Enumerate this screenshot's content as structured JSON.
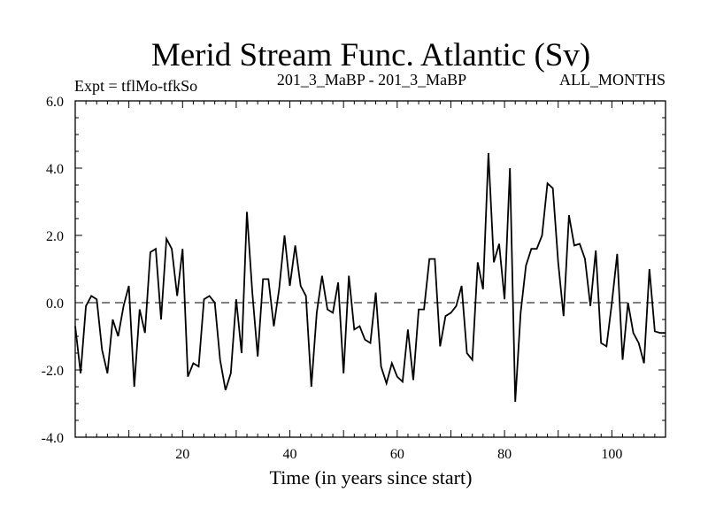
{
  "chart_data": {
    "type": "line",
    "title": "Merid Stream Func. Atlantic (Sv)",
    "subtitle_left": "Expt = tflMo-tfkSo",
    "subtitle_center": "201_3_MaBP - 201_3_MaBP",
    "subtitle_right": "ALL_MONTHS",
    "xlabel": "Time (in years since start)",
    "ylabel": "",
    "xlim": [
      0,
      110
    ],
    "ylim": [
      -4.0,
      6.0
    ],
    "x_ticks": [
      20,
      40,
      60,
      80,
      100
    ],
    "x_tick_labels": [
      "20",
      "40",
      "60",
      "80",
      "100"
    ],
    "y_ticks": [
      -4.0,
      -2.0,
      0.0,
      2.0,
      4.0,
      6.0
    ],
    "y_tick_labels": [
      "-4.0",
      "-2.0",
      "0.0",
      "2.0",
      "4.0",
      "6.0"
    ],
    "zero_line": 0.0,
    "series": [
      {
        "name": "Merid Stream Func.",
        "x": [
          0,
          1,
          2,
          3,
          4,
          5,
          6,
          7,
          8,
          9,
          10,
          11,
          12,
          13,
          14,
          15,
          16,
          17,
          18,
          19,
          20,
          21,
          22,
          23,
          24,
          25,
          26,
          27,
          28,
          29,
          30,
          31,
          32,
          33,
          34,
          35,
          36,
          37,
          38,
          39,
          40,
          41,
          42,
          43,
          44,
          45,
          46,
          47,
          48,
          49,
          50,
          51,
          52,
          53,
          54,
          55,
          56,
          57,
          58,
          59,
          60,
          61,
          62,
          63,
          64,
          65,
          66,
          67,
          68,
          69,
          70,
          71,
          72,
          73,
          74,
          75,
          76,
          77,
          78,
          79,
          80,
          81,
          82,
          83,
          84,
          85,
          86,
          87,
          88,
          89,
          90,
          91,
          92,
          93,
          94,
          95,
          96,
          97,
          98,
          99,
          100,
          101,
          102,
          103,
          104,
          105,
          106,
          107,
          108,
          109,
          110
        ],
        "values": [
          -0.7,
          -2.1,
          -0.1,
          0.2,
          0.1,
          -1.4,
          -2.1,
          -0.5,
          -1.0,
          -0.1,
          0.5,
          -2.5,
          -0.2,
          -0.9,
          1.5,
          1.6,
          -0.5,
          1.9,
          1.6,
          0.2,
          1.6,
          -2.2,
          -1.8,
          -1.9,
          0.1,
          0.2,
          0.0,
          -1.7,
          -2.6,
          -2.1,
          0.1,
          -1.5,
          2.7,
          0.3,
          -1.6,
          0.7,
          0.7,
          -0.7,
          0.4,
          2.0,
          0.5,
          1.7,
          0.5,
          0.2,
          -2.5,
          -0.3,
          0.8,
          -0.2,
          -0.3,
          0.6,
          -2.1,
          0.8,
          -0.8,
          -0.7,
          -1.1,
          -1.2,
          0.3,
          -1.9,
          -2.4,
          -1.8,
          -2.2,
          -2.35,
          -0.8,
          -2.3,
          -0.2,
          -0.2,
          1.3,
          1.3,
          -1.3,
          -0.4,
          -0.3,
          -0.1,
          0.5,
          -1.5,
          -1.7,
          1.2,
          0.4,
          4.45,
          1.2,
          1.75,
          0.1,
          4.0,
          -2.95,
          -0.3,
          1.1,
          1.6,
          1.6,
          2.0,
          3.55,
          3.4,
          1.2,
          -0.4,
          2.6,
          1.7,
          1.75,
          1.3,
          -0.1,
          1.55,
          -1.2,
          -1.3,
          0.0,
          1.45,
          -1.7,
          0.0,
          -0.9,
          -1.2,
          -1.8,
          1.0,
          -0.85,
          -0.9,
          -0.9
        ]
      }
    ]
  }
}
